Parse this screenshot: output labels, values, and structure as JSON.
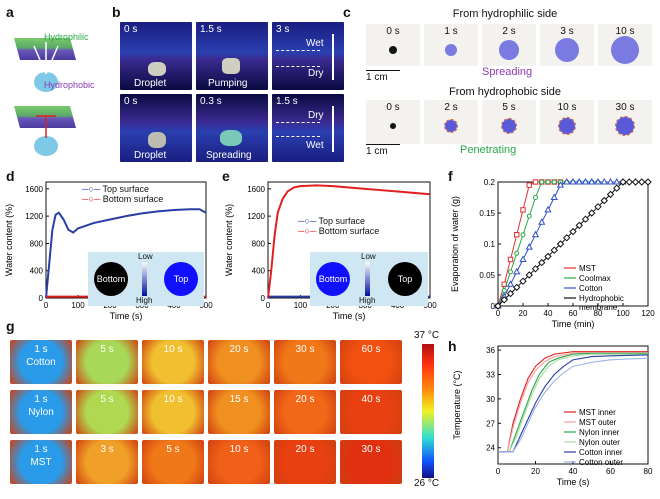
{
  "panels": {
    "a": "a",
    "b": "b",
    "c": "c",
    "d": "d",
    "e": "e",
    "f": "f",
    "g": "g",
    "h": "h"
  },
  "a": {
    "hydrophilic": "Hydrophilic",
    "hydrophobic": "Hydrophobic"
  },
  "b": {
    "row1": [
      {
        "time": "0 s",
        "caption": "Droplet"
      },
      {
        "time": "1.5 s",
        "caption": "Pumping"
      },
      {
        "time": "3 s",
        "caption": ""
      }
    ],
    "row2": [
      {
        "time": "0 s",
        "caption": "Droplet"
      },
      {
        "time": "0.3 s",
        "caption": "Spreading"
      },
      {
        "time": "1.5 s",
        "caption": ""
      }
    ],
    "wet": "Wet",
    "dry": "Dry"
  },
  "c": {
    "title1": "From hydrophilic side",
    "times1": [
      "0 s",
      "1 s",
      "2 s",
      "3 s",
      "10 s"
    ],
    "label1": "Spreading",
    "title2": "From hydrophobic side",
    "times2": [
      "0 s",
      "2 s",
      "5 s",
      "10 s",
      "30 s"
    ],
    "label2": "Penetrating",
    "scale": "1 cm"
  },
  "d": {
    "legend": [
      "Top surface",
      "Bottom surface"
    ],
    "inset": {
      "low": "Low",
      "high": "High",
      "left": "Bottom",
      "right": "Top"
    },
    "chart_data": {
      "type": "line",
      "xlabel": "Time (s)",
      "ylabel": "Water content (%)",
      "xlim": [
        0,
        500
      ],
      "ylim": [
        0,
        1700
      ],
      "xticks": [
        0,
        100,
        200,
        300,
        400,
        500
      ],
      "yticks": [
        0,
        400,
        800,
        1200,
        1600
      ],
      "series": [
        {
          "name": "Top surface",
          "color": "#2a3fa6",
          "x": [
            0,
            10,
            20,
            30,
            40,
            55,
            70,
            85,
            100,
            150,
            200,
            250,
            300,
            350,
            400,
            450,
            480,
            500
          ],
          "y": [
            0,
            500,
            1000,
            1220,
            1250,
            1150,
            1000,
            960,
            1020,
            1100,
            1150,
            1200,
            1240,
            1270,
            1290,
            1300,
            1300,
            1250
          ]
        },
        {
          "name": "Bottom surface",
          "color": "#e02020",
          "x": [
            0,
            100,
            200,
            300,
            400,
            500
          ],
          "y": [
            20,
            20,
            20,
            20,
            20,
            20
          ]
        }
      ]
    }
  },
  "e": {
    "legend": [
      "Top surface",
      "Bottom surface"
    ],
    "inset": {
      "low": "Low",
      "high": "High",
      "left": "Bottom",
      "right": "Top"
    },
    "chart_data": {
      "type": "line",
      "xlabel": "Time (s)",
      "ylabel": "Water content (%)",
      "xlim": [
        0,
        500
      ],
      "ylim": [
        0,
        1700
      ],
      "xticks": [
        0,
        100,
        200,
        300,
        400,
        500
      ],
      "yticks": [
        0,
        400,
        800,
        1200,
        1600
      ],
      "series": [
        {
          "name": "Top surface",
          "color": "#2a3fa6",
          "x": [
            0,
            100,
            200,
            300,
            400,
            500
          ],
          "y": [
            20,
            20,
            20,
            20,
            20,
            20
          ]
        },
        {
          "name": "Bottom surface",
          "color": "#e02020",
          "x": [
            0,
            10,
            20,
            30,
            45,
            60,
            80,
            100,
            150,
            200,
            250,
            300,
            350,
            400,
            450,
            500
          ],
          "y": [
            0,
            400,
            900,
            1250,
            1450,
            1560,
            1620,
            1640,
            1650,
            1640,
            1620,
            1600,
            1580,
            1560,
            1540,
            1520
          ]
        }
      ]
    }
  },
  "f": {
    "chart_data": {
      "type": "line",
      "xlabel": "Time (min)",
      "ylabel": "Evaporation of water (g)",
      "xlim": [
        0,
        120
      ],
      "ylim": [
        0,
        0.2
      ],
      "xticks": [
        0,
        20,
        40,
        60,
        80,
        100,
        120
      ],
      "yticks": [
        0,
        0.05,
        0.1,
        0.15,
        0.2
      ],
      "series": [
        {
          "name": "MST",
          "color": "#e03030",
          "marker": "square",
          "x": [
            0,
            5,
            10,
            15,
            20,
            25,
            30,
            35,
            40,
            45,
            50
          ],
          "y": [
            0,
            0.035,
            0.075,
            0.115,
            0.155,
            0.195,
            0.2,
            0.2,
            0.2,
            0.2,
            0.2
          ]
        },
        {
          "name": "Coolmax",
          "color": "#2aa84a",
          "marker": "circle",
          "x": [
            0,
            5,
            10,
            15,
            20,
            25,
            30,
            35,
            40,
            45,
            50,
            55,
            60,
            65,
            70,
            75,
            80
          ],
          "y": [
            0,
            0.025,
            0.055,
            0.085,
            0.115,
            0.145,
            0.175,
            0.2,
            0.2,
            0.2,
            0.2,
            0.2,
            0.2,
            0.2,
            0.2,
            0.2,
            0.2
          ]
        },
        {
          "name": "Cotton",
          "color": "#3050c8",
          "marker": "triangle",
          "x": [
            0,
            5,
            10,
            15,
            20,
            25,
            30,
            35,
            40,
            45,
            50,
            55,
            60,
            65,
            70,
            75,
            80,
            85,
            90,
            95,
            100
          ],
          "y": [
            0,
            0.015,
            0.035,
            0.055,
            0.075,
            0.095,
            0.115,
            0.135,
            0.155,
            0.175,
            0.195,
            0.2,
            0.2,
            0.2,
            0.2,
            0.2,
            0.2,
            0.2,
            0.2,
            0.2,
            0.2
          ]
        },
        {
          "name": "Hydrophobic\nmembrane",
          "color": "#111111",
          "marker": "diamond",
          "x": [
            0,
            5,
            10,
            15,
            20,
            25,
            30,
            35,
            40,
            45,
            50,
            55,
            60,
            65,
            70,
            75,
            80,
            85,
            90,
            95,
            100,
            105,
            110,
            115,
            120
          ],
          "y": [
            0,
            0.01,
            0.02,
            0.03,
            0.04,
            0.05,
            0.06,
            0.07,
            0.08,
            0.09,
            0.1,
            0.11,
            0.12,
            0.13,
            0.14,
            0.15,
            0.16,
            0.17,
            0.18,
            0.19,
            0.2,
            0.2,
            0.2,
            0.2,
            0.2
          ]
        }
      ]
    }
  },
  "g": {
    "rows": [
      {
        "name": "Cotton",
        "times": [
          "1 s",
          "5 s",
          "10 s",
          "20 s",
          "30 s",
          "60 s"
        ]
      },
      {
        "name": "Nylon",
        "times": [
          "1 s",
          "5 s",
          "10 s",
          "15 s",
          "20 s",
          "40 s"
        ]
      },
      {
        "name": "MST",
        "times": [
          "1 s",
          "3 s",
          "5 s",
          "10 s",
          "20 s",
          "30 s"
        ]
      }
    ],
    "scale_max": "37 °C",
    "scale_min": "26 °C"
  },
  "h": {
    "chart_data": {
      "type": "line",
      "xlabel": "Time (s)",
      "ylabel": "Temperature (°C)",
      "xlim": [
        0,
        80
      ],
      "ylim": [
        22,
        36.5
      ],
      "xticks": [
        0,
        20,
        40,
        60,
        80
      ],
      "yticks": [
        24,
        27,
        30,
        33,
        36
      ],
      "series": [
        {
          "name": "MST inner",
          "color": "#e02020",
          "x": [
            0,
            5,
            8,
            12,
            16,
            20,
            25,
            30,
            40,
            50,
            60,
            80
          ],
          "y": [
            23.5,
            23.5,
            27,
            30,
            32.5,
            34,
            35,
            35.5,
            35.8,
            35.8,
            35.8,
            35.8
          ]
        },
        {
          "name": "MST outer",
          "color": "#f0a0a0",
          "x": [
            0,
            5,
            8,
            12,
            16,
            20,
            25,
            30,
            40,
            50,
            60,
            80
          ],
          "y": [
            23.5,
            23.5,
            26.5,
            29.5,
            32,
            33.5,
            34.6,
            35.2,
            35.6,
            35.7,
            35.7,
            35.7
          ]
        },
        {
          "name": "Nylon inner",
          "color": "#2aa84a",
          "x": [
            0,
            6,
            10,
            14,
            18,
            22,
            27,
            32,
            40,
            50,
            60,
            80
          ],
          "y": [
            23.5,
            23.5,
            26,
            28.5,
            31,
            33,
            34.5,
            35,
            35.5,
            35.6,
            35.6,
            35.6
          ]
        },
        {
          "name": "Nylon outer",
          "color": "#a8dca0",
          "x": [
            0,
            6,
            10,
            14,
            18,
            22,
            27,
            32,
            40,
            50,
            60,
            80
          ],
          "y": [
            23.5,
            23.5,
            25.5,
            28,
            30.5,
            32.5,
            34,
            34.8,
            35.3,
            35.5,
            35.5,
            35.5
          ]
        },
        {
          "name": "Cotton inner",
          "color": "#2a3fa6",
          "x": [
            0,
            8,
            12,
            16,
            20,
            25,
            30,
            35,
            40,
            50,
            60,
            80
          ],
          "y": [
            23.5,
            23.5,
            25.5,
            27.5,
            29.5,
            31.5,
            33,
            34,
            34.8,
            35.2,
            35.3,
            35.4
          ]
        },
        {
          "name": "Cotton outer",
          "color": "#9db4e8",
          "x": [
            0,
            8,
            12,
            16,
            20,
            25,
            30,
            35,
            40,
            50,
            60,
            80
          ],
          "y": [
            23.5,
            23.5,
            25,
            27,
            29,
            30.8,
            32.2,
            33.2,
            34,
            34.5,
            34.8,
            35
          ]
        }
      ]
    }
  }
}
